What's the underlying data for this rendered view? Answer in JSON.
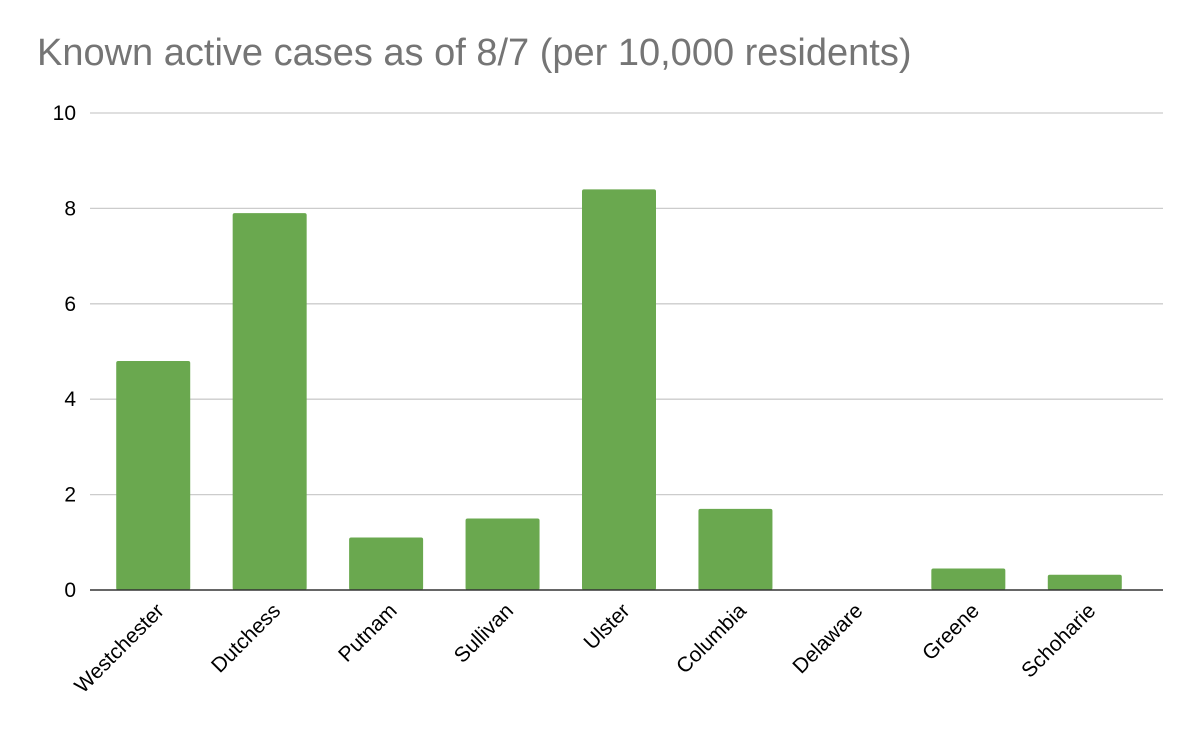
{
  "chart_data": {
    "type": "bar",
    "title": "Known active cases as of 8/7 (per 10,000 residents)",
    "xlabel": "",
    "ylabel": "",
    "categories": [
      "Westchester",
      "Dutchess",
      "Putnam",
      "Sullivan",
      "Ulster",
      "Columbia",
      "Delaware",
      "Greene",
      "Schoharie"
    ],
    "values": [
      4.8,
      7.9,
      1.1,
      1.5,
      8.4,
      1.7,
      0.0,
      0.45,
      0.32
    ],
    "ylim": [
      0,
      10
    ],
    "yticks": [
      "0",
      "2",
      "4",
      "6",
      "8",
      "10"
    ],
    "grid": true,
    "legend": "none",
    "colors": {
      "bar": "#6aa84f",
      "grid": "#cccccc",
      "axis": "#333333"
    }
  }
}
